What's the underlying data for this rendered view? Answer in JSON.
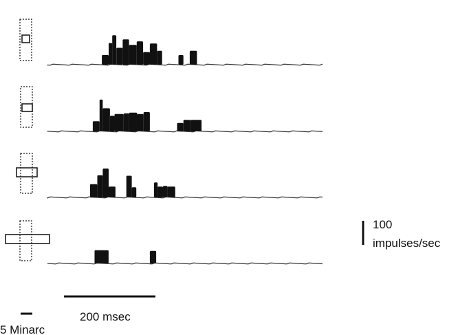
{
  "chart_data": {
    "type": "bar",
    "title": "",
    "xlabel": "",
    "ylabel": "",
    "time_unit": "msec",
    "rate_unit": "impulses/sec",
    "time_range": [
      0,
      610
    ],
    "rate_range": [
      0,
      130
    ],
    "ink_color": "#111111",
    "stimulus_icons": [
      "receptive field with small square bar",
      "receptive field with short bar",
      "receptive field with medium bar",
      "receptive field with long bar"
    ],
    "panels": [
      {
        "bin_start_ms": [
          120,
          135,
          143,
          152,
          166,
          180,
          197,
          211,
          226,
          242,
          253,
          275,
          289,
          300,
          314,
          330,
          345,
          352
        ],
        "bin_end_ms": [
          135,
          143,
          152,
          166,
          180,
          197,
          211,
          226,
          242,
          253,
          275,
          289,
          300,
          314,
          330,
          345,
          352,
          368
        ],
        "rates": [
          40,
          90,
          122,
          70,
          105,
          82,
          97,
          52,
          88,
          58,
          0,
          0,
          40,
          0,
          58,
          0,
          0,
          0
        ]
      },
      {
        "bin_start_ms": [
          100,
          115,
          122,
          138,
          148,
          168,
          180,
          198,
          212,
          226,
          240,
          286,
          300,
          315
        ],
        "bin_end_ms": [
          115,
          122,
          138,
          148,
          168,
          180,
          198,
          212,
          226,
          240,
          286,
          300,
          315,
          340
        ],
        "rates": [
          42,
          132,
          96,
          65,
          72,
          75,
          78,
          72,
          80,
          0,
          0,
          35,
          48,
          48
        ],
        "note_gap": [
          240,
          286
        ]
      },
      {
        "bin_start_ms": [
          94,
          110,
          122,
          135,
          150,
          165,
          174,
          186,
          196,
          220,
          235,
          243,
          255,
          265
        ],
        "bin_end_ms": [
          110,
          122,
          135,
          150,
          165,
          174,
          186,
          196,
          220,
          235,
          243,
          255,
          265,
          282
        ],
        "rates": [
          55,
          92,
          120,
          45,
          0,
          0,
          90,
          42,
          0,
          0,
          62,
          45,
          48,
          45
        ]
      },
      {
        "bin_start_ms": [
          104,
          135,
          226
        ],
        "bin_end_ms": [
          135,
          226,
          240
        ],
        "rates": [
          55,
          0,
          52
        ]
      }
    ],
    "scale_bars": {
      "time_label": "200 msec",
      "time_value": 200,
      "rate_label_line1": "100",
      "rate_label_line2": "impulses/sec",
      "rate_value": 100,
      "angle_label": "5 Minarc",
      "angle_value": 5
    }
  }
}
